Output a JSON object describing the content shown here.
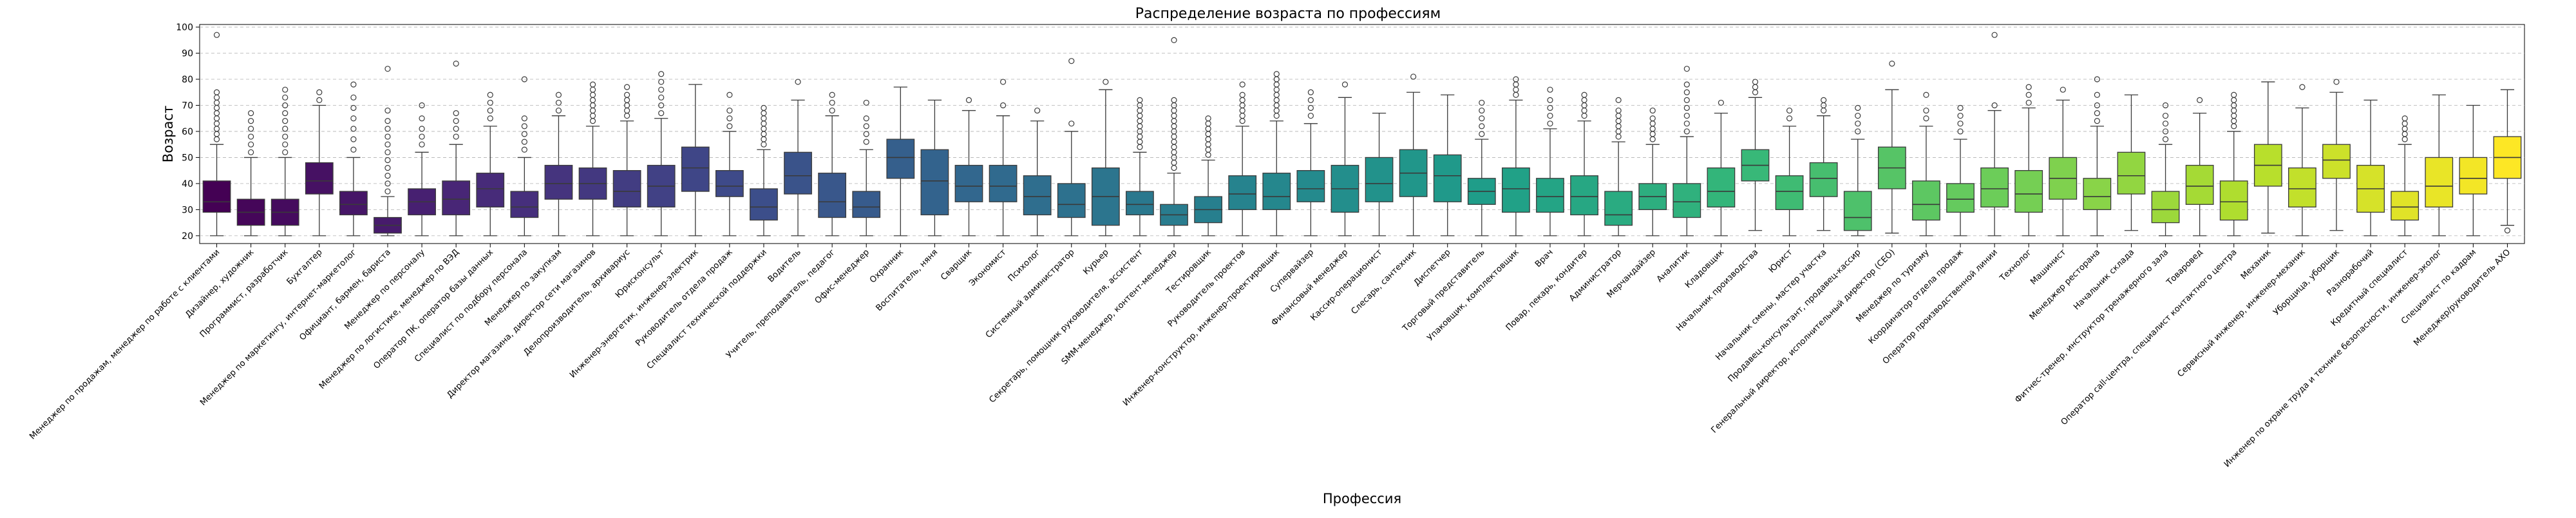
{
  "chart_data": {
    "type": "box",
    "title": "Распределение возраста по профессиям",
    "xlabel": "Профессия",
    "ylabel": "Возраст",
    "ylim": [
      17,
      101
    ],
    "yticks": [
      20,
      30,
      40,
      50,
      60,
      70,
      80,
      90,
      100
    ],
    "grid": true,
    "colormap": "viridis",
    "series": [
      {
        "category": "Менеджер по продажам, менеджер по работе с клиентами",
        "q1": 29,
        "median": 33,
        "q3": 41,
        "whisker_low": 20,
        "whisker_high": 55,
        "outliers": [
          57,
          59,
          61,
          63,
          65,
          67,
          69,
          71,
          73,
          75,
          97
        ]
      },
      {
        "category": "Дизайнер, художник",
        "q1": 24,
        "median": 29,
        "q3": 34,
        "whisker_low": 20,
        "whisker_high": 50,
        "outliers": [
          52,
          55,
          58,
          61,
          64,
          67
        ]
      },
      {
        "category": "Программист, разработчик",
        "q1": 24,
        "median": 29,
        "q3": 34,
        "whisker_low": 20,
        "whisker_high": 50,
        "outliers": [
          52,
          55,
          58,
          61,
          64,
          67,
          70,
          73,
          76
        ]
      },
      {
        "category": "Бухгалтер",
        "q1": 36,
        "median": 41,
        "q3": 48,
        "whisker_low": 20,
        "whisker_high": 70,
        "outliers": [
          72,
          75
        ]
      },
      {
        "category": "Менеджер по маркетингу, интернет-маркетолог",
        "q1": 28,
        "median": 32,
        "q3": 37,
        "whisker_low": 20,
        "whisker_high": 50,
        "outliers": [
          53,
          57,
          61,
          65,
          69,
          73,
          78
        ]
      },
      {
        "category": "Официант, бармен, бариста",
        "q1": 21,
        "median": 24,
        "q3": 27,
        "whisker_low": 20,
        "whisker_high": 35,
        "outliers": [
          37,
          40,
          43,
          46,
          49,
          52,
          55,
          58,
          61,
          64,
          68,
          84
        ]
      },
      {
        "category": "Менеджер по персоналу",
        "q1": 28,
        "median": 33,
        "q3": 38,
        "whisker_low": 20,
        "whisker_high": 52,
        "outliers": [
          55,
          58,
          61,
          65,
          70
        ]
      },
      {
        "category": "Менеджер по логистике, менеджер по ВЭД",
        "q1": 28,
        "median": 34,
        "q3": 41,
        "whisker_low": 20,
        "whisker_high": 55,
        "outliers": [
          58,
          61,
          64,
          67,
          86
        ]
      },
      {
        "category": "Оператор ПК, оператор базы данных",
        "q1": 31,
        "median": 38,
        "q3": 44,
        "whisker_low": 20,
        "whisker_high": 62,
        "outliers": [
          65,
          68,
          71,
          74
        ]
      },
      {
        "category": "Специалист по подбору персонала",
        "q1": 27,
        "median": 31,
        "q3": 37,
        "whisker_low": 20,
        "whisker_high": 50,
        "outliers": [
          53,
          56,
          59,
          62,
          65,
          80
        ]
      },
      {
        "category": "Менеджер по закупкам",
        "q1": 34,
        "median": 40,
        "q3": 47,
        "whisker_low": 20,
        "whisker_high": 66,
        "outliers": [
          68,
          71,
          74
        ]
      },
      {
        "category": "Директор магазина, директор сети магазинов",
        "q1": 34,
        "median": 40,
        "q3": 46,
        "whisker_low": 20,
        "whisker_high": 62,
        "outliers": [
          64,
          66,
          68,
          70,
          72,
          74,
          76,
          78
        ]
      },
      {
        "category": "Делопроизводитель, архивариус",
        "q1": 31,
        "median": 37,
        "q3": 45,
        "whisker_low": 20,
        "whisker_high": 64,
        "outliers": [
          66,
          68,
          70,
          72,
          74,
          77
        ]
      },
      {
        "category": "Юрисконсульт",
        "q1": 31,
        "median": 39,
        "q3": 47,
        "whisker_low": 20,
        "whisker_high": 65,
        "outliers": [
          67,
          70,
          73,
          76,
          79,
          82
        ]
      },
      {
        "category": "Инженер-энергетик, инженер-электрик",
        "q1": 37,
        "median": 46,
        "q3": 54,
        "whisker_low": 20,
        "whisker_high": 78,
        "outliers": []
      },
      {
        "category": "Руководитель отдела продаж",
        "q1": 35,
        "median": 39,
        "q3": 45,
        "whisker_low": 20,
        "whisker_high": 60,
        "outliers": [
          62,
          65,
          68,
          74
        ]
      },
      {
        "category": "Специалист технической поддержки",
        "q1": 26,
        "median": 31,
        "q3": 38,
        "whisker_low": 20,
        "whisker_high": 53,
        "outliers": [
          55,
          57,
          59,
          61,
          63,
          65,
          67,
          69
        ]
      },
      {
        "category": "Водитель",
        "q1": 36,
        "median": 43,
        "q3": 52,
        "whisker_low": 20,
        "whisker_high": 72,
        "outliers": [
          79
        ]
      },
      {
        "category": "Учитель, преподаватель, педагог",
        "q1": 27,
        "median": 33,
        "q3": 44,
        "whisker_low": 20,
        "whisker_high": 66,
        "outliers": [
          68,
          71,
          74
        ]
      },
      {
        "category": "Офис-менеджер",
        "q1": 27,
        "median": 31,
        "q3": 37,
        "whisker_low": 20,
        "whisker_high": 53,
        "outliers": [
          56,
          59,
          62,
          65,
          71
        ]
      },
      {
        "category": "Охранник",
        "q1": 42,
        "median": 50,
        "q3": 57,
        "whisker_low": 20,
        "whisker_high": 77,
        "outliers": []
      },
      {
        "category": "Воспитатель, няня",
        "q1": 28,
        "median": 41,
        "q3": 53,
        "whisker_low": 20,
        "whisker_high": 72,
        "outliers": []
      },
      {
        "category": "Сварщик",
        "q1": 33,
        "median": 39,
        "q3": 47,
        "whisker_low": 20,
        "whisker_high": 68,
        "outliers": [
          72
        ]
      },
      {
        "category": "Экономист",
        "q1": 33,
        "median": 39,
        "q3": 47,
        "whisker_low": 20,
        "whisker_high": 66,
        "outliers": [
          70,
          79
        ]
      },
      {
        "category": "Психолог",
        "q1": 28,
        "median": 35,
        "q3": 43,
        "whisker_low": 20,
        "whisker_high": 64,
        "outliers": [
          68
        ]
      },
      {
        "category": "Системный администратор",
        "q1": 27,
        "median": 32,
        "q3": 40,
        "whisker_low": 20,
        "whisker_high": 60,
        "outliers": [
          63,
          87
        ]
      },
      {
        "category": "Курьер",
        "q1": 24,
        "median": 35,
        "q3": 46,
        "whisker_low": 20,
        "whisker_high": 76,
        "outliers": [
          79
        ]
      },
      {
        "category": "Секретарь, помощник руководителя, ассистент",
        "q1": 28,
        "median": 32,
        "q3": 37,
        "whisker_low": 20,
        "whisker_high": 52,
        "outliers": [
          54,
          56,
          58,
          60,
          62,
          64,
          66,
          68,
          70,
          72
        ]
      },
      {
        "category": "SMM-менеджер, контент-менеджер",
        "q1": 24,
        "median": 28,
        "q3": 32,
        "whisker_low": 20,
        "whisker_high": 44,
        "outliers": [
          46,
          48,
          50,
          52,
          54,
          56,
          58,
          60,
          62,
          64,
          66,
          68,
          70,
          72,
          95
        ]
      },
      {
        "category": "Тестировщик",
        "q1": 25,
        "median": 30,
        "q3": 35,
        "whisker_low": 20,
        "whisker_high": 49,
        "outliers": [
          51,
          53,
          55,
          57,
          59,
          61,
          63,
          65
        ]
      },
      {
        "category": "Руководитель проектов",
        "q1": 30,
        "median": 36,
        "q3": 43,
        "whisker_low": 20,
        "whisker_high": 62,
        "outliers": [
          64,
          66,
          68,
          70,
          72,
          74,
          78
        ]
      },
      {
        "category": "Инженер-конструктор, инженер-проектировщик",
        "q1": 30,
        "median": 35,
        "q3": 44,
        "whisker_low": 20,
        "whisker_high": 64,
        "outliers": [
          66,
          68,
          70,
          72,
          74,
          76,
          78,
          80,
          82
        ]
      },
      {
        "category": "Супервайзер",
        "q1": 33,
        "median": 38,
        "q3": 45,
        "whisker_low": 20,
        "whisker_high": 63,
        "outliers": [
          66,
          69,
          72,
          75
        ]
      },
      {
        "category": "Финансовый менеджер",
        "q1": 29,
        "median": 38,
        "q3": 47,
        "whisker_low": 20,
        "whisker_high": 73,
        "outliers": [
          78
        ]
      },
      {
        "category": "Кассир-операционист",
        "q1": 33,
        "median": 40,
        "q3": 50,
        "whisker_low": 20,
        "whisker_high": 67,
        "outliers": []
      },
      {
        "category": "Слесарь, сантехник",
        "q1": 35,
        "median": 44,
        "q3": 53,
        "whisker_low": 20,
        "whisker_high": 75,
        "outliers": [
          81
        ]
      },
      {
        "category": "Диспетчер",
        "q1": 33,
        "median": 43,
        "q3": 51,
        "whisker_low": 20,
        "whisker_high": 74,
        "outliers": []
      },
      {
        "category": "Торговый представитель",
        "q1": 32,
        "median": 37,
        "q3": 42,
        "whisker_low": 20,
        "whisker_high": 57,
        "outliers": [
          59,
          62,
          65,
          68,
          71
        ]
      },
      {
        "category": "Упаковщик, комплектовщик",
        "q1": 29,
        "median": 38,
        "q3": 46,
        "whisker_low": 20,
        "whisker_high": 72,
        "outliers": [
          74,
          76,
          78,
          80
        ]
      },
      {
        "category": "Врач",
        "q1": 29,
        "median": 35,
        "q3": 42,
        "whisker_low": 20,
        "whisker_high": 61,
        "outliers": [
          63,
          66,
          69,
          72,
          76
        ]
      },
      {
        "category": "Повар, пекарь, кондитер",
        "q1": 28,
        "median": 35,
        "q3": 43,
        "whisker_low": 20,
        "whisker_high": 64,
        "outliers": [
          66,
          68,
          70,
          72,
          74
        ]
      },
      {
        "category": "Администратор",
        "q1": 24,
        "median": 28,
        "q3": 37,
        "whisker_low": 20,
        "whisker_high": 56,
        "outliers": [
          58,
          60,
          62,
          64,
          66,
          68,
          72
        ]
      },
      {
        "category": "Мерчандайзер",
        "q1": 30,
        "median": 35,
        "q3": 40,
        "whisker_low": 20,
        "whisker_high": 55,
        "outliers": [
          57,
          59,
          61,
          63,
          65,
          68
        ]
      },
      {
        "category": "Аналитик",
        "q1": 27,
        "median": 33,
        "q3": 40,
        "whisker_low": 20,
        "whisker_high": 58,
        "outliers": [
          60,
          63,
          66,
          69,
          72,
          75,
          78,
          84
        ]
      },
      {
        "category": "Кладовщик",
        "q1": 31,
        "median": 37,
        "q3": 46,
        "whisker_low": 20,
        "whisker_high": 67,
        "outliers": [
          71
        ]
      },
      {
        "category": "Начальник производства",
        "q1": 41,
        "median": 47,
        "q3": 53,
        "whisker_low": 22,
        "whisker_high": 73,
        "outliers": [
          75,
          77,
          79
        ]
      },
      {
        "category": "Юрист",
        "q1": 30,
        "median": 37,
        "q3": 43,
        "whisker_low": 20,
        "whisker_high": 62,
        "outliers": [
          65,
          68
        ]
      },
      {
        "category": "Начальник смены, мастер участка",
        "q1": 35,
        "median": 42,
        "q3": 48,
        "whisker_low": 22,
        "whisker_high": 66,
        "outliers": [
          68,
          70,
          72
        ]
      },
      {
        "category": "Продавец-консультант, продавец-кассир",
        "q1": 22,
        "median": 27,
        "q3": 37,
        "whisker_low": 20,
        "whisker_high": 57,
        "outliers": [
          60,
          63,
          66,
          69
        ]
      },
      {
        "category": "Генеральный директор, исполнительный директор (CEO)",
        "q1": 38,
        "median": 46,
        "q3": 54,
        "whisker_low": 21,
        "whisker_high": 76,
        "outliers": [
          86
        ]
      },
      {
        "category": "Менеджер по туризму",
        "q1": 26,
        "median": 32,
        "q3": 41,
        "whisker_low": 20,
        "whisker_high": 62,
        "outliers": [
          65,
          68,
          74
        ]
      },
      {
        "category": "Координатор отдела продаж",
        "q1": 29,
        "median": 34,
        "q3": 40,
        "whisker_low": 20,
        "whisker_high": 57,
        "outliers": [
          60,
          63,
          66,
          69
        ]
      },
      {
        "category": "Оператор производственной линии",
        "q1": 31,
        "median": 38,
        "q3": 46,
        "whisker_low": 20,
        "whisker_high": 68,
        "outliers": [
          70,
          97
        ]
      },
      {
        "category": "Технолог",
        "q1": 29,
        "median": 36,
        "q3": 45,
        "whisker_low": 20,
        "whisker_high": 69,
        "outliers": [
          71,
          74,
          77
        ]
      },
      {
        "category": "Машинист",
        "q1": 34,
        "median": 42,
        "q3": 50,
        "whisker_low": 20,
        "whisker_high": 72,
        "outliers": [
          76
        ]
      },
      {
        "category": "Менеджер ресторана",
        "q1": 30,
        "median": 35,
        "q3": 42,
        "whisker_low": 20,
        "whisker_high": 62,
        "outliers": [
          64,
          67,
          70,
          74,
          80
        ]
      },
      {
        "category": "Начальник склада",
        "q1": 36,
        "median": 43,
        "q3": 52,
        "whisker_low": 22,
        "whisker_high": 74,
        "outliers": []
      },
      {
        "category": "Фитнес-тренер, инструктор тренажерного зала",
        "q1": 25,
        "median": 30,
        "q3": 37,
        "whisker_low": 20,
        "whisker_high": 55,
        "outliers": [
          57,
          60,
          63,
          66,
          70
        ]
      },
      {
        "category": "Товаровед",
        "q1": 32,
        "median": 39,
        "q3": 47,
        "whisker_low": 20,
        "whisker_high": 67,
        "outliers": [
          72
        ]
      },
      {
        "category": "Оператор call-центра, специалист контактного центра",
        "q1": 26,
        "median": 33,
        "q3": 41,
        "whisker_low": 20,
        "whisker_high": 60,
        "outliers": [
          62,
          64,
          66,
          68,
          70,
          72,
          74
        ]
      },
      {
        "category": "Механик",
        "q1": 39,
        "median": 47,
        "q3": 55,
        "whisker_low": 21,
        "whisker_high": 79,
        "outliers": []
      },
      {
        "category": "Сервисный инженер, инженер-механик",
        "q1": 31,
        "median": 38,
        "q3": 46,
        "whisker_low": 20,
        "whisker_high": 69,
        "outliers": [
          77
        ]
      },
      {
        "category": "Уборщица, уборщик",
        "q1": 42,
        "median": 49,
        "q3": 55,
        "whisker_low": 22,
        "whisker_high": 75,
        "outliers": [
          79
        ]
      },
      {
        "category": "Разнорабочий",
        "q1": 29,
        "median": 38,
        "q3": 47,
        "whisker_low": 20,
        "whisker_high": 72,
        "outliers": []
      },
      {
        "category": "Кредитный специалист",
        "q1": 26,
        "median": 31,
        "q3": 37,
        "whisker_low": 20,
        "whisker_high": 55,
        "outliers": [
          57,
          59,
          61,
          63,
          65
        ]
      },
      {
        "category": "Инженер по охране труда и технике безопасности, инженер-эколог",
        "q1": 31,
        "median": 39,
        "q3": 50,
        "whisker_low": 20,
        "whisker_high": 74,
        "outliers": []
      },
      {
        "category": "Специалист по кадрам",
        "q1": 36,
        "median": 42,
        "q3": 50,
        "whisker_low": 20,
        "whisker_high": 70,
        "outliers": []
      },
      {
        "category": "Менеджер/руководитель АХО",
        "q1": 42,
        "median": 50,
        "q3": 58,
        "whisker_low": 24,
        "whisker_high": 76,
        "outliers": [
          22
        ]
      }
    ]
  }
}
